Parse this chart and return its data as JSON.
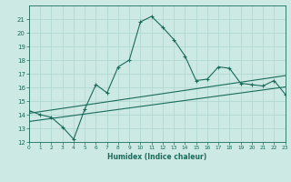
{
  "xlabel": "Humidex (Indice chaleur)",
  "ylabel": "",
  "bg_color": "#cce9e4",
  "grid_color": "#b0d8d0",
  "line_color": "#1a6b5a",
  "x_values": [
    0,
    1,
    2,
    3,
    4,
    5,
    6,
    7,
    8,
    9,
    10,
    11,
    12,
    13,
    14,
    15,
    16,
    17,
    18,
    19,
    20,
    21,
    22,
    23
  ],
  "main_line": [
    14.3,
    14.0,
    13.8,
    13.1,
    12.2,
    14.4,
    16.2,
    15.6,
    17.5,
    18.0,
    20.8,
    21.2,
    20.4,
    19.5,
    18.3,
    16.5,
    16.6,
    17.5,
    17.4,
    16.3,
    16.2,
    16.1,
    16.5,
    15.5
  ],
  "trend_low": [
    13.5,
    13.61,
    13.72,
    13.83,
    13.94,
    14.05,
    14.16,
    14.27,
    14.38,
    14.49,
    14.6,
    14.71,
    14.82,
    14.93,
    15.04,
    15.15,
    15.26,
    15.37,
    15.48,
    15.59,
    15.7,
    15.81,
    15.92,
    16.03
  ],
  "trend_high": [
    14.1,
    14.22,
    14.34,
    14.46,
    14.58,
    14.7,
    14.82,
    14.94,
    15.06,
    15.18,
    15.3,
    15.42,
    15.54,
    15.66,
    15.78,
    15.9,
    16.02,
    16.14,
    16.26,
    16.38,
    16.5,
    16.62,
    16.74,
    16.86
  ],
  "ylim": [
    12,
    22
  ],
  "xlim": [
    0,
    23
  ],
  "yticks": [
    12,
    13,
    14,
    15,
    16,
    17,
    18,
    19,
    20,
    21
  ],
  "xticks": [
    0,
    1,
    2,
    3,
    4,
    5,
    6,
    7,
    8,
    9,
    10,
    11,
    12,
    13,
    14,
    15,
    16,
    17,
    18,
    19,
    20,
    21,
    22,
    23
  ]
}
